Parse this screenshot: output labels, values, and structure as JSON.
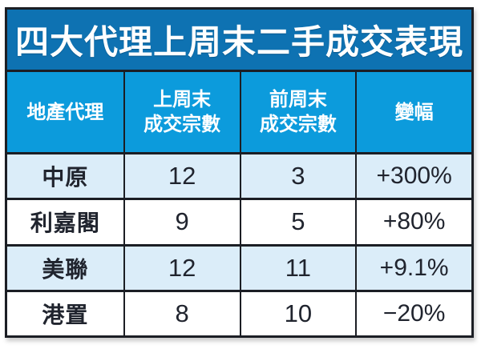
{
  "title": "四大代理上周末二手成交表現",
  "headers": [
    [
      "地產代理"
    ],
    [
      "上周末",
      "成交宗數"
    ],
    [
      "前周末",
      "成交宗數"
    ],
    [
      "變幅"
    ]
  ],
  "chart_data": {
    "type": "table",
    "title": "四大代理上周末二手成交表現",
    "columns": [
      "地產代理",
      "上周末成交宗數",
      "前周末成交宗數",
      "變幅"
    ],
    "rows": [
      [
        "中原",
        "12",
        "3",
        "+300%"
      ],
      [
        "利嘉閣",
        "9",
        "5",
        "+80%"
      ],
      [
        "美聯",
        "12",
        "11",
        "+9.1%"
      ],
      [
        "港置",
        "8",
        "10",
        "−20%"
      ]
    ]
  },
  "colors": {
    "title_bg": "#0e72b2",
    "header_bg": "#0c9bdc",
    "row_alt_bg": "#dbedf9",
    "row_bg": "#ffffff",
    "border": "#1b1e24",
    "header_text": "#ffffff",
    "data_text": "#20242e"
  }
}
